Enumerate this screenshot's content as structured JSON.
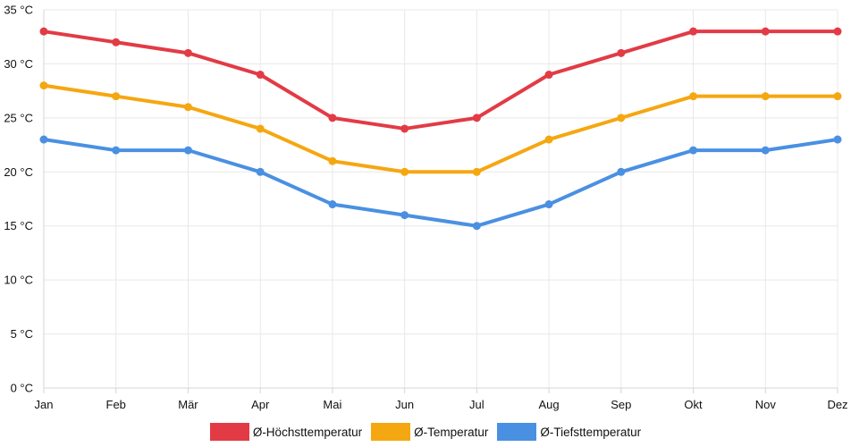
{
  "chart_data": {
    "type": "line",
    "title": "",
    "xlabel": "",
    "ylabel": "",
    "categories": [
      "Jan",
      "Feb",
      "Mär",
      "Apr",
      "Mai",
      "Jun",
      "Jul",
      "Aug",
      "Sep",
      "Okt",
      "Nov",
      "Dez"
    ],
    "ylim": [
      0,
      35
    ],
    "y_ticks": [
      0,
      5,
      10,
      15,
      20,
      25,
      30,
      35
    ],
    "y_tick_labels": [
      "0 °C",
      "5 °C",
      "10 °C",
      "15 °C",
      "20 °C",
      "25 °C",
      "30 °C",
      "35 °C"
    ],
    "grid": true,
    "legend_position": "bottom",
    "series": [
      {
        "name": "Ø-Höchsttemperatur",
        "color": "#e23b45",
        "values": [
          33,
          32,
          31,
          29,
          25,
          24,
          25,
          29,
          31,
          33,
          33,
          33
        ]
      },
      {
        "name": "Ø-Temperatur",
        "color": "#f5a711",
        "values": [
          28,
          27,
          26,
          24,
          21,
          20,
          20,
          23,
          25,
          27,
          27,
          27
        ]
      },
      {
        "name": "Ø-Tiefsttemperatur",
        "color": "#4a90e2",
        "values": [
          23,
          22,
          22,
          20,
          17,
          16,
          15,
          17,
          20,
          22,
          22,
          23
        ]
      }
    ]
  }
}
